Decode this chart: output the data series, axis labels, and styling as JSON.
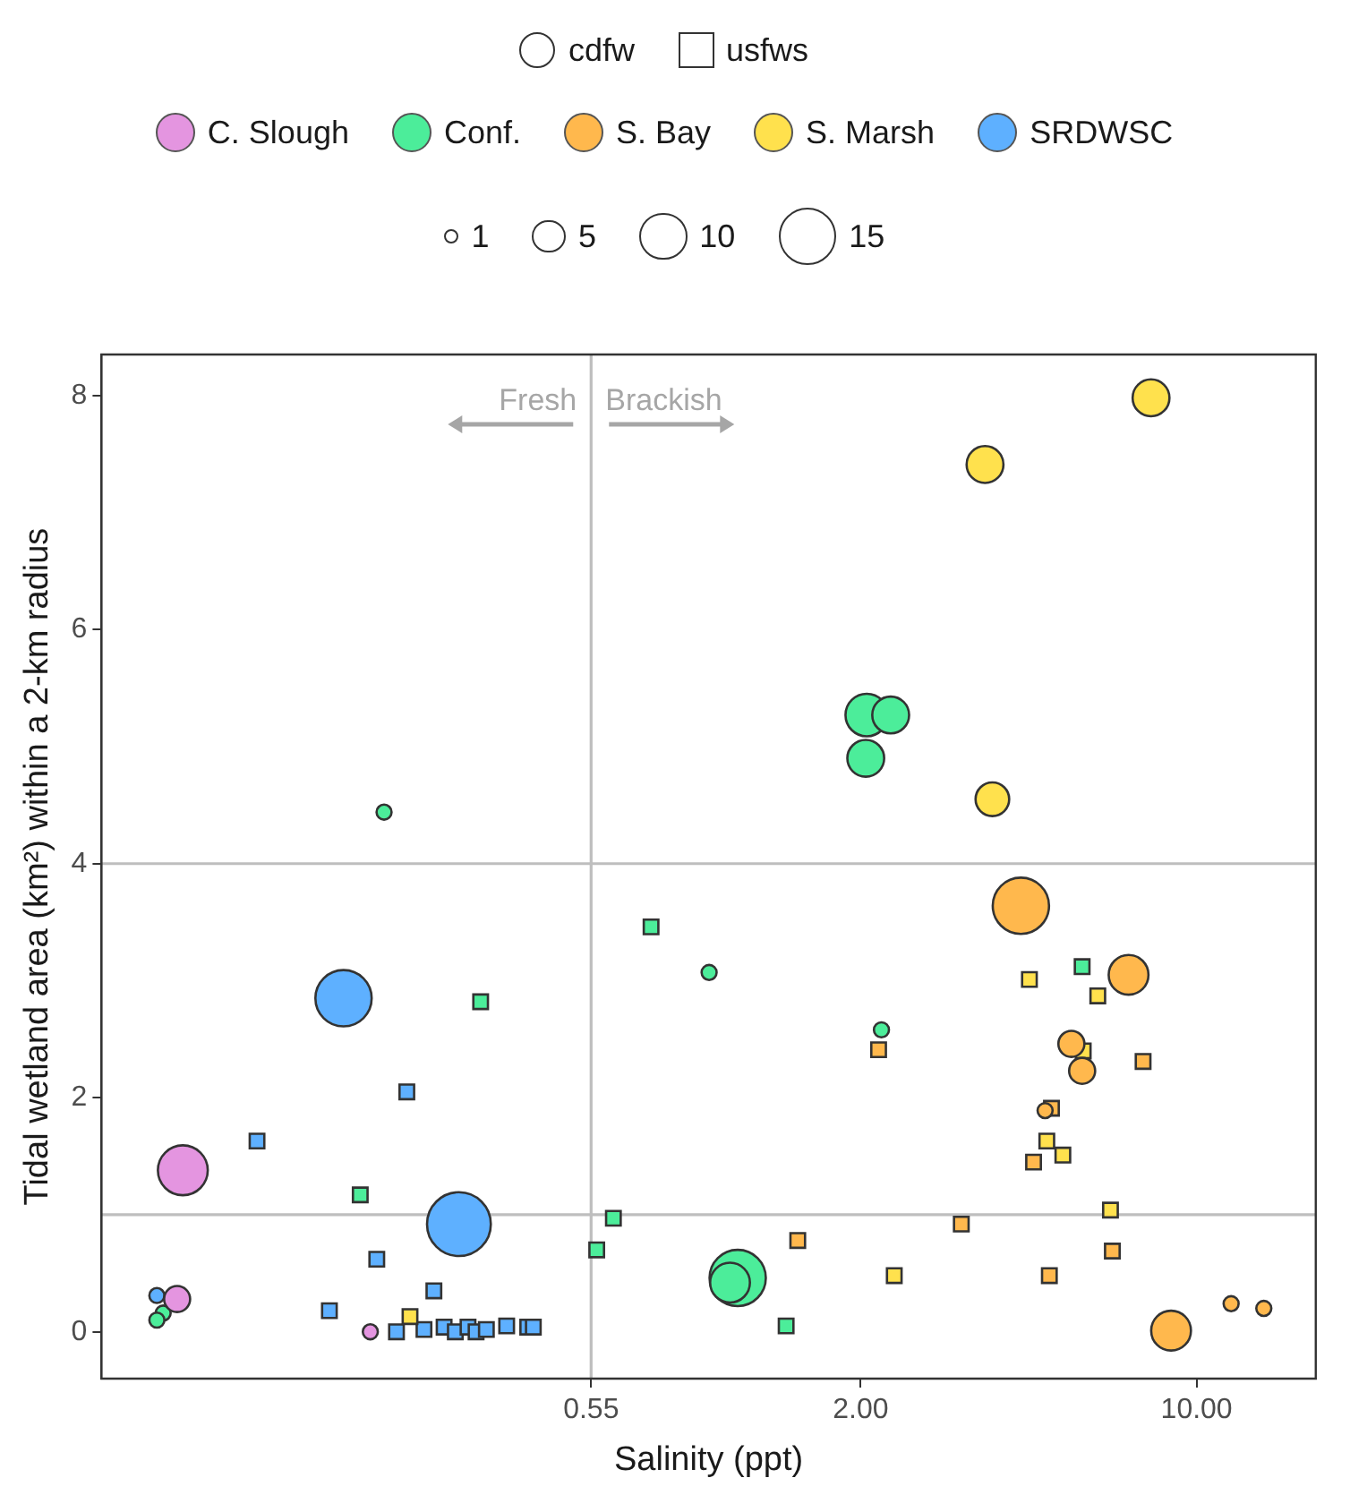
{
  "chart_data": {
    "type": "bubble",
    "xlabel": "Salinity (ppt)",
    "ylabel": "Tidal wetland area (km²) within a 2-km radius",
    "log": "x",
    "xlim": [
      0.0527,
      17.7
    ],
    "xticks": [
      0.55,
      {
        "value": 2,
        "label": "2.00"
      },
      {
        "value": 10,
        "label": "10.00"
      }
    ],
    "ylim": [
      -0.4,
      8.35
    ],
    "yticks": [
      0,
      2,
      4,
      6,
      8
    ],
    "grid": false,
    "legend": "top",
    "size_legend": [
      1,
      5,
      10,
      15
    ],
    "ref_lines": [
      {
        "axis": "y",
        "value": 1,
        "color": "#bebebe"
      },
      {
        "axis": "y",
        "value": 4,
        "color": "#bebebe"
      },
      {
        "axis": "x",
        "value": 0.55,
        "color": "#bebebe"
      }
    ],
    "annotations": [
      "Fresh",
      "Brackish"
    ],
    "series": [
      {
        "name": "cdfw",
        "marker": "circle"
      },
      {
        "name": "usfws",
        "marker": "square"
      },
      {
        "name": "C. Slough",
        "color": "#e495e0",
        "marker": "circle",
        "x": [
          0.0778,
          0.0757,
          0.191
        ],
        "values": [
          1.38,
          0.28,
          0.0
        ],
        "sizes": [
          11,
          3,
          1
        ]
      },
      {
        "name": "Conf.",
        "color": "#4ced9a",
        "marker": "circle",
        "x": [
          0.0708,
          0.0687,
          0.204,
          0.968,
          2.21,
          1.11,
          1.07,
          2.06,
          2.31,
          2.05
        ],
        "values": [
          0.16,
          0.1,
          4.44,
          3.07,
          2.58,
          0.46,
          0.42,
          5.27,
          5.27,
          4.9
        ],
        "sizes": [
          1,
          1,
          1,
          1,
          1,
          14,
          7,
          8,
          6,
          6
        ]
      },
      {
        "color": "#4ced9a",
        "marker": "square",
        "x": [
          0.324,
          0.182,
          0.733,
          5.78,
          0.612,
          0.565,
          1.4
        ],
        "values": [
          2.82,
          1.17,
          3.46,
          3.12,
          0.97,
          0.7,
          0.05
        ],
        "sizes": [
          1.2,
          1.2,
          1.2,
          1.2,
          1.2,
          1.2,
          1.2
        ]
      },
      {
        "name": "S. Bay",
        "color": "#ffb84d",
        "marker": "circle",
        "x": [
          7.22,
          5.49,
          5.78,
          4.84,
          8.85,
          11.8,
          13.8,
          4.31
        ],
        "values": [
          3.05,
          2.46,
          2.23,
          1.89,
          0.01,
          0.24,
          0.2,
          3.64
        ],
        "sizes": [
          7,
          3,
          3,
          1,
          7,
          1,
          1,
          14
        ]
      },
      {
        "color": "#ffb84d",
        "marker": "square",
        "x": [
          2.18,
          7.74,
          4.99,
          4.58,
          3.24,
          1.48,
          6.68,
          4.94
        ],
        "values": [
          2.41,
          2.31,
          1.91,
          1.45,
          0.92,
          0.78,
          0.69,
          0.48
        ],
        "sizes": [
          1.2,
          1.2,
          1.2,
          1.2,
          1.2,
          1.2,
          1.2,
          1.2
        ]
      },
      {
        "name": "S. Marsh",
        "color": "#ffe14d",
        "marker": "circle",
        "x": [
          8.04,
          3.63,
          3.76
        ],
        "values": [
          7.98,
          7.41,
          4.55
        ],
        "sizes": [
          6,
          6,
          5
        ]
      },
      {
        "color": "#ffe14d",
        "marker": "square",
        "x": [
          0.231,
          4.49,
          6.23,
          5.81,
          4.88,
          5.27,
          6.62,
          2.35
        ],
        "values": [
          0.13,
          3.01,
          2.87,
          2.4,
          1.63,
          1.51,
          1.04,
          0.48
        ],
        "sizes": [
          1.2,
          1.2,
          1.2,
          1.2,
          1.2,
          1.2,
          1.2,
          1.2
        ]
      },
      {
        "name": "SRDWSC",
        "color": "#5eb0ff",
        "marker": "circle",
        "x": [
          0.168,
          0.292,
          0.0687
        ],
        "values": [
          2.85,
          0.92,
          0.31
        ],
        "sizes": [
          14,
          18,
          1
        ]
      },
      {
        "color": "#5eb0ff",
        "marker": "square",
        "x": [
          0.2275,
          0.111,
          0.197,
          0.259,
          0.157,
          0.2165,
          0.247,
          0.272,
          0.287,
          0.305,
          0.317,
          0.333,
          0.367,
          0.406,
          0.417
        ],
        "values": [
          2.05,
          1.63,
          0.62,
          0.35,
          0.18,
          0.0,
          0.02,
          0.04,
          0.0,
          0.04,
          0.0,
          0.02,
          0.05,
          0.04,
          0.04
        ],
        "sizes": [
          1.2,
          1.2,
          1.2,
          1.2,
          1.2,
          1.2,
          1.2,
          1.2,
          1.2,
          1.2,
          1.2,
          1.2,
          1.2,
          1.2,
          1.2
        ]
      }
    ]
  }
}
